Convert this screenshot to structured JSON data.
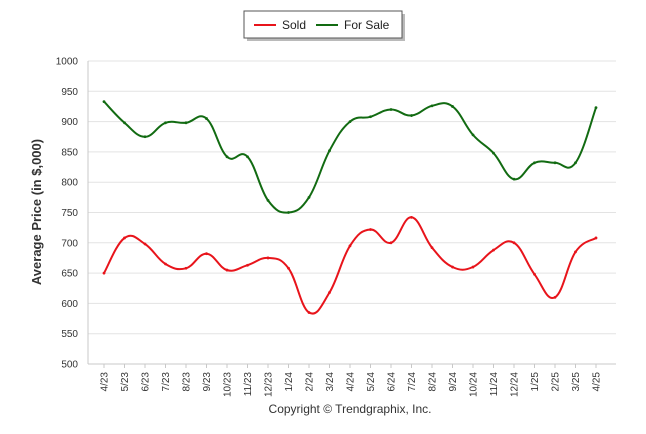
{
  "chart_data": {
    "type": "line",
    "ylabel": "Average Price (in $,000)",
    "ylim": [
      500,
      1000
    ],
    "yticks": [
      "1000",
      "950",
      "900",
      "850",
      "800",
      "750",
      "700",
      "650",
      "600",
      "550",
      "500"
    ],
    "categories": [
      "4/23",
      "5/23",
      "6/23",
      "7/23",
      "8/23",
      "9/23",
      "10/23",
      "11/23",
      "12/23",
      "1/24",
      "2/24",
      "3/24",
      "4/24",
      "5/24",
      "6/24",
      "7/24",
      "8/24",
      "9/24",
      "10/24",
      "11/24",
      "12/24",
      "1/25",
      "2/25",
      "3/25",
      "4/25"
    ],
    "series": [
      {
        "name": "Sold",
        "color": "#e8141b",
        "values": [
          650,
          708,
          698,
          665,
          658,
          682,
          655,
          663,
          675,
          658,
          585,
          618,
          695,
          722,
          700,
          742,
          692,
          660,
          660,
          688,
          700,
          648,
          610,
          685,
          708
        ]
      },
      {
        "name": "For Sale",
        "color": "#126b12",
        "values": [
          933,
          898,
          875,
          898,
          898,
          905,
          842,
          842,
          770,
          750,
          775,
          852,
          900,
          908,
          920,
          910,
          926,
          925,
          878,
          848,
          805,
          832,
          832,
          832,
          923
        ]
      }
    ],
    "legend_position": "top-center",
    "grid": true
  },
  "footer": {
    "copyright": "Copyright © Trendgraphix, Inc."
  }
}
